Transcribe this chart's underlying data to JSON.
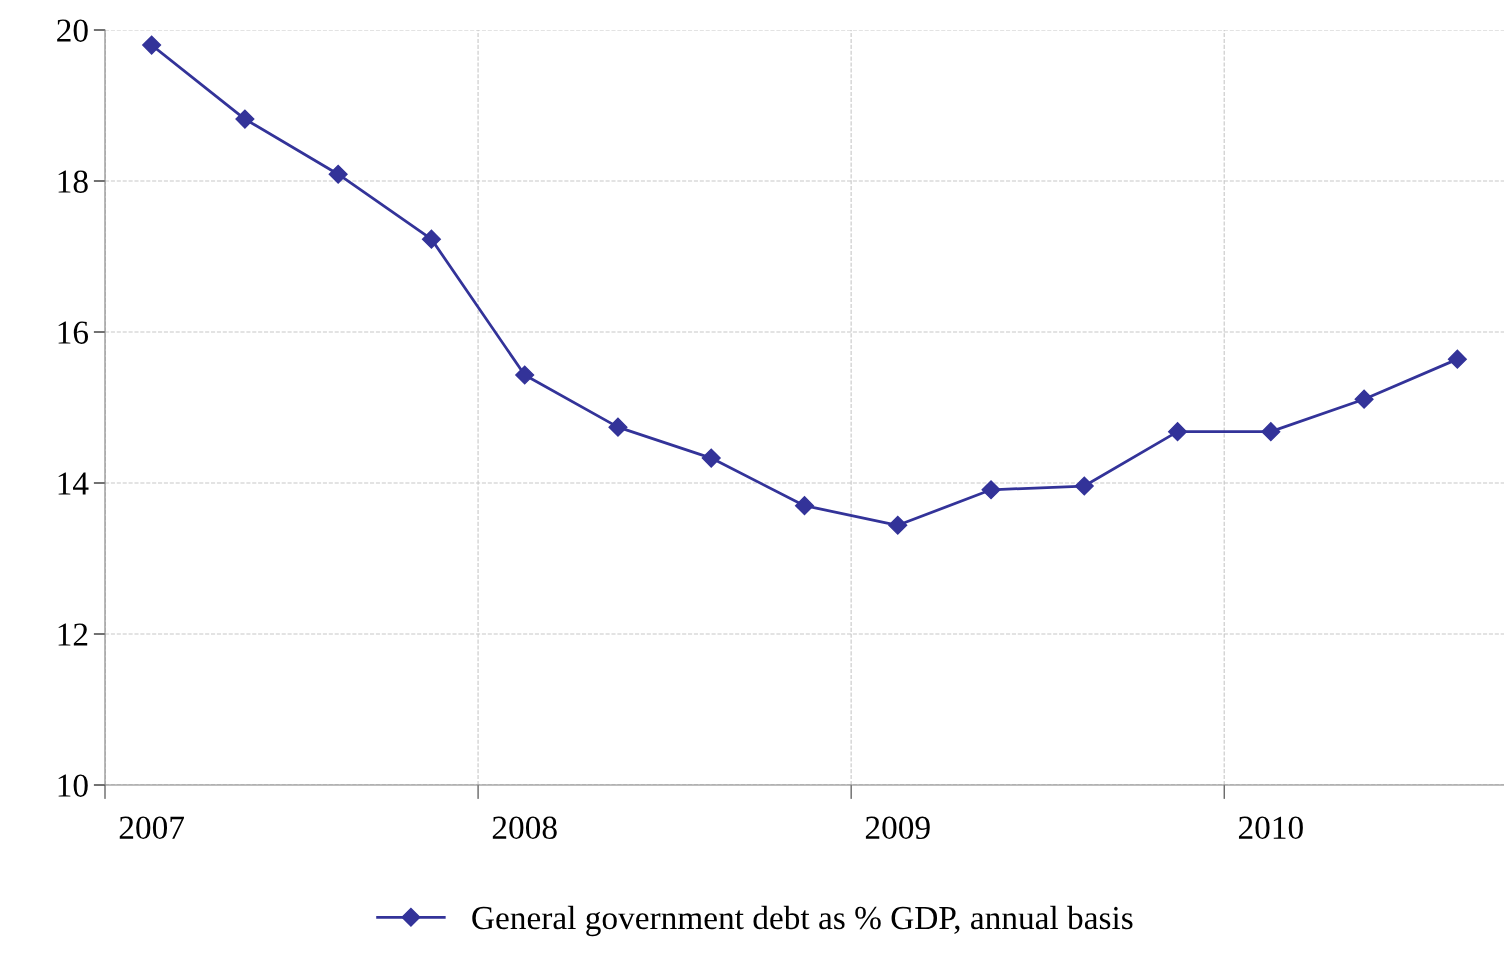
{
  "chart_data": {
    "type": "line",
    "categories": [
      "2007",
      null,
      null,
      null,
      "2008",
      null,
      null,
      null,
      "2009",
      null,
      null,
      null,
      "2010",
      null,
      null
    ],
    "series": [
      {
        "name": "General government debt as % GDP, annual basis",
        "color": "#333399",
        "values": [
          19.8,
          18.82,
          18.09,
          17.23,
          15.43,
          14.74,
          14.33,
          13.7,
          13.44,
          13.91,
          13.96,
          14.68,
          14.68,
          15.11,
          15.64
        ]
      }
    ],
    "ylim": [
      10,
      20
    ],
    "yticks": [
      10,
      12,
      14,
      16,
      18,
      20
    ],
    "grid": true,
    "legend": "bottom",
    "marker": "diamond",
    "line_style": "solid"
  }
}
